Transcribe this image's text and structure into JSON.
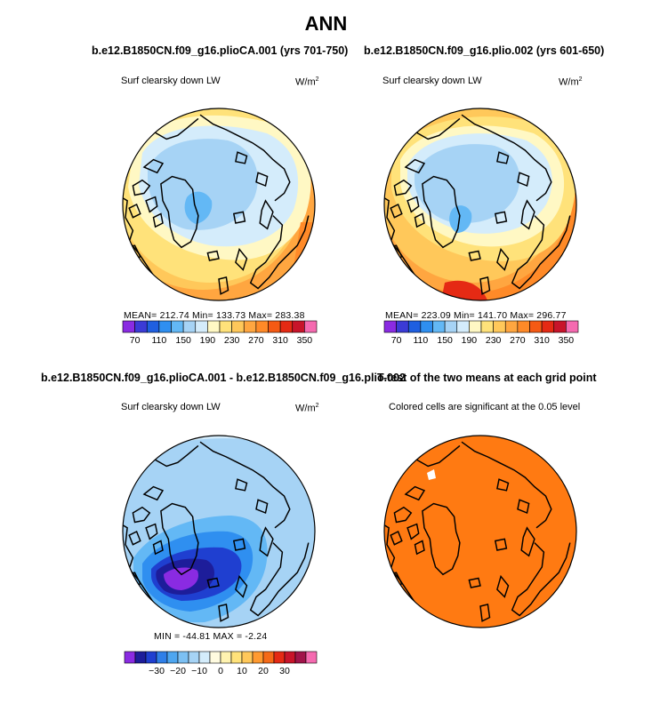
{
  "figure_title": "ANN",
  "panels": [
    {
      "title": "b.e12.B1850CN.f09_g16.plioCA.001 (yrs 701-750)",
      "variable": "Surf clearsky down LW",
      "units_base": "W/m",
      "units_exp": "2",
      "stats": "MEAN= 212.74   Min= 133.73   Max= 283.38",
      "colorbar_labels": [
        "70",
        "110",
        "150",
        "190",
        "230",
        "270",
        "310",
        "350"
      ]
    },
    {
      "title": "b.e12.B1850CN.f09_g16.plio.002 (yrs 601-650)",
      "variable": "Surf clearsky down LW",
      "units_base": "W/m",
      "units_exp": "2",
      "stats": "MEAN= 223.09   Min= 141.70   Max= 296.77",
      "colorbar_labels": [
        "70",
        "110",
        "150",
        "190",
        "230",
        "270",
        "310",
        "350"
      ]
    },
    {
      "title": "b.e12.B1850CN.f09_g16.plioCA.001 - b.e12.B1850CN.f09_g16.plio.002",
      "variable": "Surf clearsky down LW",
      "units_base": "W/m",
      "units_exp": "2",
      "stats": "MIN = -44.81  MAX =  -2.24",
      "colorbar_labels": [
        "−30",
        "−20",
        "−10",
        "0",
        "10",
        "20",
        "30"
      ]
    },
    {
      "title": "T-test of the two means at each grid point",
      "subtitle": "Colored cells are significant at the 0.05 level"
    }
  ],
  "chart_data": [
    {
      "type": "heatmap",
      "projection": "north polar stereographic",
      "title": "b.e12.B1850CN.f09_g16.plioCA.001 (yrs 701-750)",
      "variable": "Surf clearsky down LW",
      "units": "W/m2",
      "mean": 212.74,
      "min": 133.73,
      "max": 283.38,
      "contour_levels": [
        70,
        90,
        110,
        130,
        150,
        170,
        190,
        210,
        230,
        250,
        270,
        290,
        310,
        330,
        350
      ],
      "colorbar_ticks": [
        70,
        110,
        150,
        190,
        230,
        270,
        310,
        350
      ]
    },
    {
      "type": "heatmap",
      "projection": "north polar stereographic",
      "title": "b.e12.B1850CN.f09_g16.plio.002 (yrs 601-650)",
      "variable": "Surf clearsky down LW",
      "units": "W/m2",
      "mean": 223.09,
      "min": 141.7,
      "max": 296.77,
      "contour_levels": [
        70,
        90,
        110,
        130,
        150,
        170,
        190,
        210,
        230,
        250,
        270,
        290,
        310,
        330,
        350
      ],
      "colorbar_ticks": [
        70,
        110,
        150,
        190,
        230,
        270,
        310,
        350
      ]
    },
    {
      "type": "heatmap",
      "projection": "north polar stereographic",
      "title": "b.e12.B1850CN.f09_g16.plioCA.001 - b.e12.B1850CN.f09_g16.plio.002",
      "variable": "Surf clearsky down LW",
      "units": "W/m2",
      "min": -44.81,
      "max": -2.24,
      "contour_levels": [
        -40,
        -35,
        -30,
        -25,
        -20,
        -15,
        -10,
        -5,
        0,
        5,
        10,
        15,
        20,
        25,
        30,
        35,
        40
      ],
      "colorbar_ticks": [
        -30,
        -20,
        -10,
        0,
        10,
        20,
        30
      ]
    },
    {
      "type": "heatmap",
      "projection": "north polar stereographic",
      "title": "T-test of the two means at each grid point",
      "subtitle": "Colored cells are significant at the 0.05 level",
      "significance_level": 0.05
    }
  ],
  "colors": {
    "abs_scale": [
      "#8a2be2",
      "#3b3bd6",
      "#1f5fe0",
      "#2f8ff0",
      "#63b8f5",
      "#a6d3f5",
      "#d4ecfb",
      "#fff8c4",
      "#ffe27a",
      "#ffc85a",
      "#ffa640",
      "#ff8a28",
      "#f55a14",
      "#e52a14",
      "#c8142a",
      "#f56ab0"
    ],
    "diff_scale": [
      "#8a2be2",
      "#1d1d9a",
      "#1f3fd0",
      "#2f7fe8",
      "#4ea6f0",
      "#7cc0f3",
      "#a6d3f5",
      "#d4ecfb",
      "#fffbe0",
      "#fff3b0",
      "#ffe27a",
      "#ffc85a",
      "#ff9a30",
      "#f56a18",
      "#e52a14",
      "#c8142a",
      "#a0144a",
      "#f56ab0"
    ],
    "ttest": "#ff7a12"
  }
}
